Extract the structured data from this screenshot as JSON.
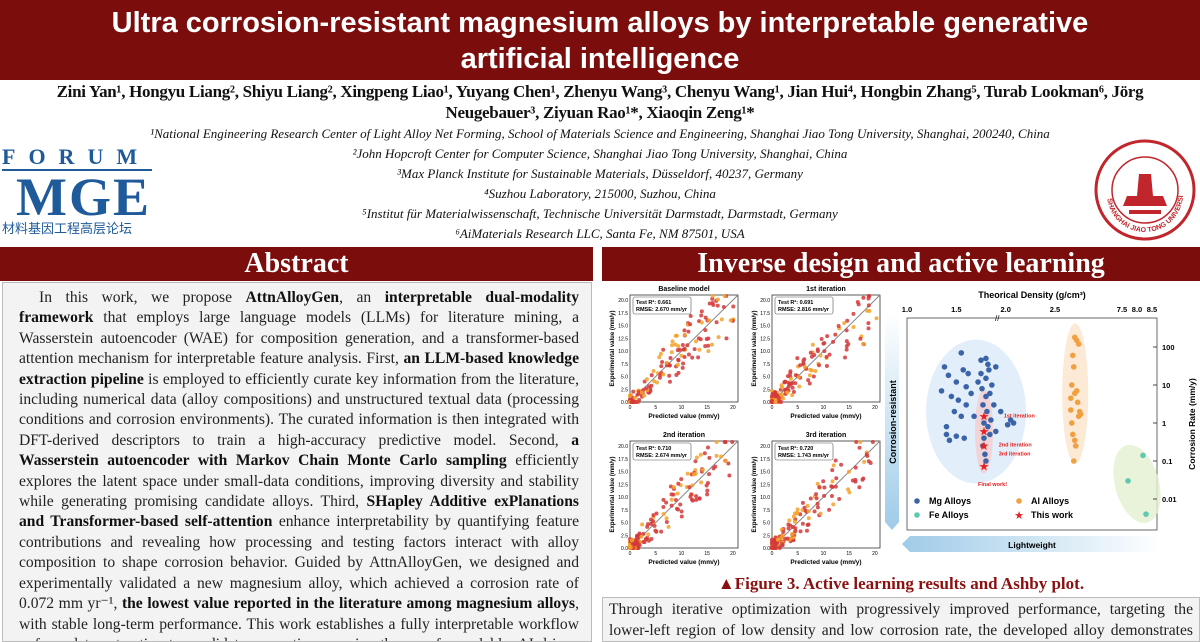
{
  "header": {
    "title_line1": "Ultra corrosion-resistant magnesium alloys by interpretable generative",
    "title_line2": "artificial intelligence",
    "authors_line1": "Zini Yan¹, Hongyu Liang², Shiyu Liang², Xingpeng Liao¹, Yuyang Chen¹, Zhenyu Wang³, Chenyu Wang¹, Jian Hui⁴, Hongbin Zhang⁵, Turab Lookman⁶, Jörg",
    "authors_line2": "Neugebauer³, Ziyuan Rao¹*, Xiaoqin Zeng¹*",
    "affiliations": [
      "¹National Engineering Research Center of Light Alloy Net Forming, School of Materials Science and Engineering, Shanghai Jiao Tong University, Shanghai, 200240, China",
      "²John Hopcroft Center for Computer Science, Shanghai Jiao Tong University, Shanghai, China",
      "³Max Planck Institute for Sustainable Materials, Düsseldorf, 40237, Germany",
      "⁴Suzhou Laboratory, 215000, Suzhou, China",
      "⁵Institut für Materialwissenschaft, Technische Universität Darmstadt, Darmstadt, Germany",
      "⁶AiMaterials Research LLC, Santa Fe, NM 87501, USA"
    ]
  },
  "logos": {
    "left_top": "FORUM",
    "left_main": "MGE",
    "left_sub": "材料基因工程高层论坛",
    "right": "SHANGHAI JIAO TONG UNIVERSITY"
  },
  "colors": {
    "brand": "#7b0d0d",
    "mg": "#3b63a8",
    "al": "#f0a040",
    "fe": "#5fc9b0",
    "star": "#e52222",
    "red_pt": "#d43a3a",
    "orange_pt": "#f4a22a"
  },
  "abstract": {
    "heading": "Abstract",
    "p": [
      "In this work, we propose ",
      "AttnAlloyGen",
      ", an ",
      "interpretable dual-modality framework",
      " that employs large language models (LLMs) for literature mining, a Wasserstein autoencoder (WAE) for composition generation, and a transformer-based attention mechanism for interpretable feature analysis. First, ",
      "an LLM-based knowledge extraction pipeline",
      " is employed to efficiently curate key information from the literature, including numerical data (alloy compositions) and unstructured textual data (processing conditions and corrosion environments). The curated information is then integrated with DFT-derived descriptors to train a high-accuracy predictive model. Second, ",
      "a Wasserstein autoencoder with Markov Chain Monte Carlo sampling",
      " efficiently explores the latent space under small-data conditions, improving diversity and stability while generating promising candidate alloys. Third, ",
      "SHapley Additive exPlanations and Transformer-based self-attention",
      " enhance interpretability by quantifying feature contributions and revealing how processing and testing factors interact with alloy composition to shape corrosion behavior. Guided by AttnAlloyGen, we designed and experimentally validated a new magnesium alloy, which achieved a corrosion rate of 0.072 mm yr⁻¹, ",
      "the lowest value reported in the literature among magnesium alloys",
      ", with stable long-term performance. This work establishes a fully interpretable workflow—from data extraction to candidate generation—paving the way for scalable, AI-driven discovery of corrosion-resistant magnesium alloys."
    ]
  },
  "section2": {
    "heading": "Inverse design and active learning",
    "caption": "▲Figure 3. Active learning results and Ashby plot.",
    "body": "Through iterative optimization with progressively improved performance, targeting the lower-left region of low density and low corrosion rate, the developed alloy demonstrates exceptionally low corrosion with lightweight characteristics and excellent long-term stability."
  },
  "chart_data": [
    {
      "type": "scatter",
      "panels": [
        {
          "title": "Baseline model",
          "metric1": "Test R²: 0.661",
          "metric2": "RMSE: 2.670 mm/yr"
        },
        {
          "title": "1st iteration",
          "metric1": "Test R²: 0.691",
          "metric2": "RMSE: 2.816 mm/yr"
        },
        {
          "title": "2nd iteration",
          "metric1": "Test R²: 0.710",
          "metric2": "RMSE: 2.674 mm/yr"
        },
        {
          "title": "3rd iteration",
          "metric1": "Test R²: 0.720",
          "metric2": "RMSE: 1.743 mm/yr"
        }
      ],
      "xlabel": "Predicted value (mm/y)",
      "ylabel": "Experimental value (mm/y)",
      "xlim": [
        0,
        21
      ],
      "ylim": [
        0,
        21
      ],
      "xticks": [
        "0",
        "5",
        "10",
        "15",
        "20"
      ],
      "yticks": [
        "0.0",
        "2.5",
        "5.0",
        "7.5",
        "10.0",
        "12.5",
        "15.0",
        "17.5",
        "20.0"
      ]
    },
    {
      "type": "scatter",
      "title": "Theorical Density (g/cm³)",
      "ylabel": "Corrosion Rate (mm/y)",
      "yscale": "log",
      "ylim": [
        0.002,
        300
      ],
      "xticks": [
        "1.0",
        "1.5",
        "2.0",
        "2.5",
        "7.5",
        "8.0",
        "8.5"
      ],
      "yticks": [
        "100",
        "10",
        "1",
        "0.1",
        "0.01"
      ],
      "arrow_y": "Corrosion-resistant",
      "arrow_x": "Lightweight",
      "legend": [
        "Mg Alloys",
        "Al Alloys",
        "Fe Alloys",
        "This work"
      ],
      "annotations": [
        "1st iteration",
        "2nd iteration",
        "3rd iteration",
        "Final work!"
      ],
      "series": [
        {
          "name": "Mg Alloys",
          "points": [
            [
              1.38,
              30
            ],
            [
              1.42,
              18
            ],
            [
              1.35,
              7
            ],
            [
              1.45,
              5
            ],
            [
              1.5,
              12
            ],
            [
              1.52,
              4
            ],
            [
              1.55,
              70
            ],
            [
              1.57,
              25
            ],
            [
              1.6,
              9
            ],
            [
              1.62,
              20
            ],
            [
              1.48,
              2
            ],
            [
              1.4,
              0.8
            ],
            [
              1.4,
              0.5
            ],
            [
              1.43,
              0.35
            ],
            [
              1.5,
              0.45
            ],
            [
              1.58,
              0.4
            ],
            [
              1.6,
              3
            ],
            [
              1.65,
              6
            ],
            [
              1.55,
              1.5
            ],
            [
              1.68,
              1.5
            ],
            [
              1.72,
              12
            ],
            [
              1.75,
              45
            ],
            [
              1.75,
              20
            ],
            [
              1.76,
              8
            ],
            [
              1.77,
              3
            ],
            [
              1.78,
              1
            ],
            [
              1.78,
              0.4
            ],
            [
              1.79,
              0.15
            ],
            [
              1.8,
              50
            ],
            [
              1.8,
              15
            ],
            [
              1.8,
              5
            ],
            [
              1.81,
              2
            ],
            [
              1.82,
              0.8
            ],
            [
              1.83,
              25
            ],
            [
              1.84,
              6
            ],
            [
              1.85,
              1.2
            ],
            [
              1.86,
              10
            ],
            [
              1.88,
              3
            ],
            [
              1.9,
              0.6
            ],
            [
              1.9,
              30
            ],
            [
              2.05,
              1.2
            ],
            [
              2.08,
              1
            ],
            [
              2.02,
              0.9
            ],
            [
              1.95,
              2
            ],
            [
              1.77,
              0.25
            ],
            [
              1.8,
              0.1
            ],
            [
              1.82,
              35
            ],
            [
              1.84,
              0.5
            ]
          ]
        },
        {
          "name": "Al Alloys",
          "points": [
            [
              2.7,
              180
            ],
            [
              2.72,
              150
            ],
            [
              2.74,
              120
            ],
            [
              2.68,
              60
            ],
            [
              2.69,
              30
            ],
            [
              2.67,
              10
            ],
            [
              2.7,
              6
            ],
            [
              2.72,
              7
            ],
            [
              2.73,
              3.5
            ],
            [
              2.75,
              2
            ],
            [
              2.76,
              1.7
            ],
            [
              2.74,
              1.5
            ],
            [
              2.66,
              2.2
            ],
            [
              2.67,
              1
            ],
            [
              2.68,
              0.5
            ],
            [
              2.7,
              0.35
            ],
            [
              2.71,
              0.25
            ],
            [
              2.69,
              0.1
            ],
            [
              2.66,
              4.5
            ]
          ]
        },
        {
          "name": "Fe Alloys",
          "points": [
            [
              7.7,
              0.03
            ],
            [
              8.2,
              0.14
            ],
            [
              8.3,
              0.004
            ]
          ]
        },
        {
          "name": "This work",
          "points": [
            [
              1.78,
              1.5
            ],
            [
              1.78,
              0.6
            ],
            [
              1.78,
              0.25
            ],
            [
              1.78,
              0.072
            ]
          ]
        }
      ]
    }
  ]
}
